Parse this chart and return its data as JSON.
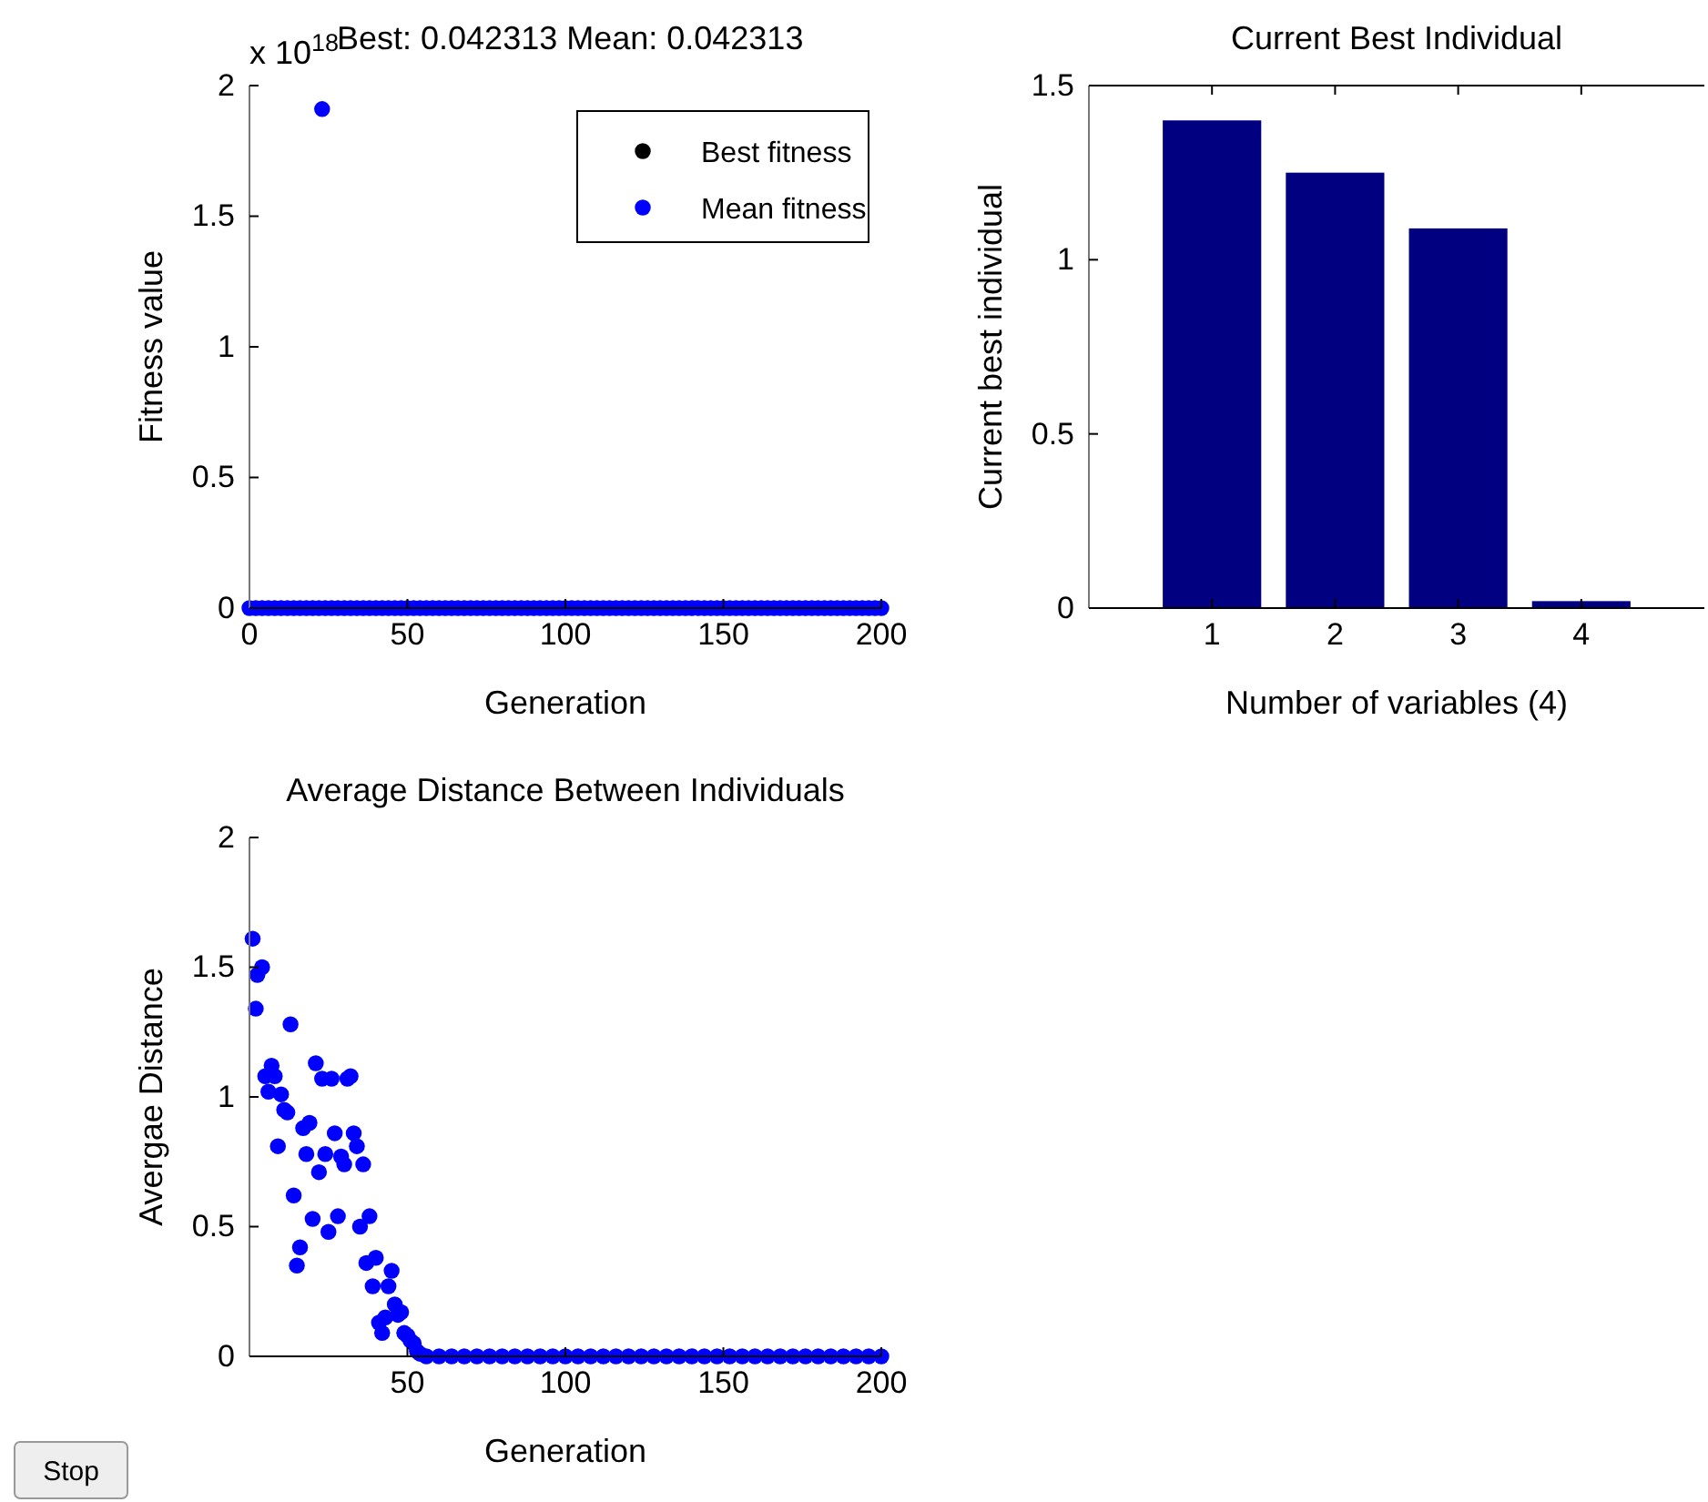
{
  "chart_data": [
    {
      "type": "scatter",
      "title": "Best: 0.042313 Mean: 0.042313",
      "xlabel": "Generation",
      "ylabel": "Fitness value",
      "annotations": [
        "x 10$^{18}$"
      ],
      "xlim": [
        0,
        200
      ],
      "xticks": [
        0,
        50,
        100,
        150,
        200
      ],
      "ylim": [
        0,
        2
      ],
      "yticks": [
        0,
        0.5,
        1,
        1.5,
        2
      ],
      "legend": "top right",
      "marker": "circle",
      "grid": false,
      "series": [
        {
          "name": "Best fitness",
          "color": "#000000"
        },
        {
          "name": "Mean fitness",
          "color": "#0000ff",
          "x": [
            0,
            2,
            4,
            6,
            8,
            10,
            12,
            14,
            16,
            18,
            20,
            22,
            23,
            24,
            26,
            28,
            30,
            32,
            34,
            36,
            38,
            40,
            42,
            44,
            46,
            48,
            50,
            52,
            54,
            56,
            58,
            60,
            62,
            64,
            66,
            68,
            70,
            72,
            74,
            76,
            78,
            80,
            82,
            84,
            86,
            88,
            90,
            92,
            94,
            96,
            98,
            100,
            102,
            104,
            106,
            108,
            110,
            112,
            114,
            116,
            118,
            120,
            122,
            124,
            126,
            128,
            130,
            132,
            134,
            136,
            138,
            140,
            142,
            144,
            146,
            148,
            150,
            152,
            154,
            156,
            158,
            160,
            162,
            164,
            166,
            168,
            170,
            172,
            174,
            176,
            178,
            180,
            182,
            184,
            186,
            188,
            190,
            192,
            194,
            196,
            198,
            200
          ],
          "values": [
            0,
            0,
            0,
            0,
            0,
            0,
            0,
            0,
            0,
            0,
            0,
            0,
            1.91,
            0,
            0,
            0,
            0,
            0,
            0,
            0,
            0,
            0,
            0,
            0,
            0,
            0,
            0,
            0,
            0,
            0,
            0,
            0,
            0,
            0,
            0,
            0,
            0,
            0,
            0,
            0,
            0,
            0,
            0,
            0,
            0,
            0,
            0,
            0,
            0,
            0,
            0,
            0,
            0,
            0,
            0,
            0,
            0,
            0,
            0,
            0,
            0,
            0,
            0,
            0,
            0,
            0,
            0,
            0,
            0,
            0,
            0,
            0,
            0,
            0,
            0,
            0,
            0,
            0,
            0,
            0,
            0,
            0,
            0,
            0,
            0,
            0,
            0,
            0,
            0,
            0,
            0,
            0,
            0,
            0,
            0,
            0,
            0,
            0,
            0,
            0,
            0,
            0
          ]
        }
      ]
    },
    {
      "type": "bar",
      "title": "Current Best Individual",
      "xlabel": "Number of variables (4)",
      "ylabel": "Current best individual",
      "x": [
        1,
        2,
        3,
        4
      ],
      "values": [
        1.4,
        1.25,
        1.09,
        0.02
      ],
      "color": "#000080",
      "xlim": [
        0,
        5
      ],
      "xticks": [
        1,
        2,
        3,
        4
      ],
      "ylim": [
        0,
        1.5
      ],
      "yticks": [
        0,
        0.5,
        1,
        1.5
      ],
      "grid": false
    },
    {
      "type": "scatter",
      "title": "Average Distance Between Individuals",
      "xlabel": "Generation",
      "ylabel": "Avergae Distance",
      "xlim": [
        0,
        200
      ],
      "xticks": [
        50,
        100,
        150,
        200
      ],
      "ylim": [
        0,
        2
      ],
      "yticks": [
        0,
        0.5,
        1,
        1.5,
        2
      ],
      "marker": "circle",
      "grid": false,
      "series": [
        {
          "color": "#0000ff",
          "x": [
            1,
            2,
            2.5,
            4,
            5,
            6,
            7,
            8,
            9,
            10,
            11,
            12,
            13,
            14,
            15,
            16,
            17,
            18,
            19,
            20,
            21,
            22,
            23,
            24,
            25,
            26,
            27,
            28,
            29,
            30,
            31,
            32,
            33,
            34,
            35,
            36,
            37,
            38,
            39,
            40,
            41,
            42,
            43,
            44,
            45,
            46,
            47,
            48,
            49,
            50,
            51,
            52,
            53,
            54,
            56,
            60,
            64,
            68,
            72,
            76,
            80,
            84,
            88,
            92,
            96,
            100,
            104,
            108,
            112,
            116,
            120,
            124,
            128,
            132,
            136,
            140,
            144,
            148,
            152,
            156,
            160,
            164,
            168,
            172,
            176,
            180,
            184,
            188,
            192,
            196,
            200
          ],
          "values": [
            1.61,
            1.34,
            1.47,
            1.5,
            1.08,
            1.02,
            1.12,
            1.08,
            0.81,
            1.01,
            0.95,
            0.94,
            1.28,
            0.62,
            0.35,
            0.42,
            0.88,
            0.78,
            0.9,
            0.53,
            1.13,
            0.71,
            1.07,
            0.78,
            0.48,
            1.07,
            0.86,
            0.54,
            0.77,
            0.74,
            1.07,
            1.08,
            0.86,
            0.81,
            0.5,
            0.74,
            0.36,
            0.54,
            0.27,
            0.38,
            0.13,
            0.09,
            0.15,
            0.27,
            0.33,
            0.2,
            0.16,
            0.17,
            0.09,
            0.08,
            0.06,
            0.05,
            0.02,
            0.01,
            0,
            0,
            0,
            0,
            0,
            0,
            0,
            0,
            0,
            0,
            0,
            0,
            0,
            0,
            0,
            0,
            0,
            0,
            0,
            0,
            0,
            0,
            0,
            0,
            0,
            0,
            0,
            0,
            0,
            0,
            0,
            0,
            0,
            0,
            0,
            0,
            0
          ]
        }
      ]
    },
    {
      "type": "other",
      "annotations": [
        "Stop"
      ]
    }
  ]
}
